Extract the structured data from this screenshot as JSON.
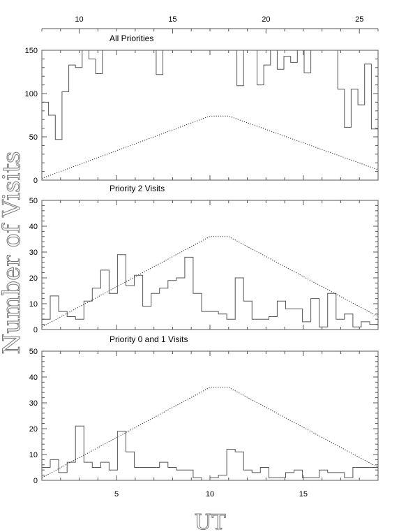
{
  "chart_data": {
    "type": "line",
    "ylabel": "Number of Visits",
    "xlabel": "UT",
    "top_axis": {
      "range": [
        8,
        26
      ],
      "ticks": [
        10,
        15,
        20,
        25
      ]
    },
    "bottom_axis": {
      "range": [
        1,
        19
      ],
      "ticks": [
        5,
        10,
        15
      ]
    },
    "panels": [
      {
        "title": "All Priorities",
        "ylim": [
          0,
          150
        ],
        "yticks": [
          0,
          50,
          100,
          150
        ],
        "histogram": [
          90,
          75,
          47,
          102,
          133,
          130,
          150,
          140,
          123,
          150,
          150,
          150,
          150,
          150,
          150,
          150,
          150,
          122,
          150,
          150,
          150,
          150,
          150,
          150,
          150,
          150,
          150,
          150,
          150,
          109,
          150,
          150,
          110,
          133,
          150,
          128,
          143,
          136,
          150,
          124,
          150,
          150,
          150,
          150,
          105,
          61,
          105,
          87,
          134,
          59
        ],
        "envelope": {
          "x": [
            1,
            10,
            11,
            19
          ],
          "y": [
            2,
            74,
            74,
            12
          ]
        }
      },
      {
        "title": "Priority 2 Visits",
        "ylim": [
          0,
          50
        ],
        "yticks": [
          0,
          10,
          20,
          30,
          40,
          50
        ],
        "histogram": [
          4,
          13,
          7,
          5,
          4,
          11,
          16,
          23,
          14,
          29,
          17,
          21,
          9,
          14,
          16,
          19,
          20,
          28,
          14,
          7,
          7,
          6,
          4,
          20,
          11,
          4,
          4,
          5,
          11,
          8,
          8,
          3,
          12,
          1,
          14,
          4,
          6,
          1,
          3,
          2
        ],
        "envelope": {
          "x": [
            1,
            10,
            11,
            19
          ],
          "y": [
            1,
            36,
            36,
            5
          ]
        }
      },
      {
        "title": "Priority 0 and 1 Visits",
        "ylim": [
          0,
          50
        ],
        "yticks": [
          0,
          10,
          20,
          30,
          40,
          50
        ],
        "histogram": [
          5,
          8,
          3,
          7,
          21,
          7,
          5,
          7,
          4,
          19,
          11,
          5,
          5,
          5,
          7,
          5,
          4,
          4,
          1,
          0,
          1,
          2,
          12,
          11,
          4,
          3,
          5,
          1,
          1,
          3,
          4,
          1,
          1,
          4,
          3,
          3,
          1,
          5,
          5,
          5
        ],
        "envelope": {
          "x": [
            1,
            10,
            11,
            19
          ],
          "y": [
            1,
            36,
            36,
            5
          ]
        }
      }
    ]
  }
}
